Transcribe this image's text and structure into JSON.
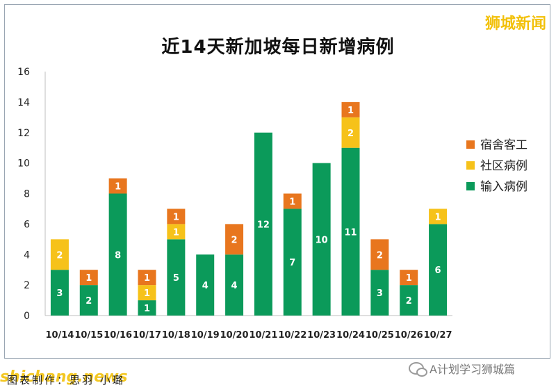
{
  "watermark_top": "狮城新闻",
  "watermark_left": "shichang.news",
  "credit": "图表制作：思羽 小璐",
  "wechat_account": "A计划学习狮城篇",
  "colors": {
    "dorm": "#e8761e",
    "community": "#f6c21a",
    "imported": "#0b9a5a"
  },
  "chart_data": {
    "type": "bar",
    "stacked": true,
    "title": "近14天新加坡每日新增病例",
    "categories": [
      "10/14",
      "10/15",
      "10/16",
      "10/17",
      "10/18",
      "10/19",
      "10/20",
      "10/21",
      "10/22",
      "10/23",
      "10/24",
      "10/25",
      "10/26",
      "10/27"
    ],
    "series": [
      {
        "name": "输入病例",
        "color": "#0b9a5a",
        "values": [
          3,
          2,
          8,
          1,
          5,
          4,
          4,
          12,
          7,
          10,
          11,
          3,
          2,
          6
        ]
      },
      {
        "name": "社区病例",
        "color": "#f6c21a",
        "values": [
          2,
          0,
          0,
          1,
          1,
          0,
          0,
          0,
          0,
          0,
          2,
          0,
          0,
          1
        ]
      },
      {
        "name": "宿舍客工",
        "color": "#e8761e",
        "values": [
          0,
          1,
          1,
          1,
          1,
          0,
          2,
          0,
          1,
          0,
          1,
          2,
          1,
          0
        ]
      }
    ],
    "legend_order": [
      "宿舍客工",
      "社区病例",
      "输入病例"
    ],
    "legend_position": "right",
    "ylim": [
      0,
      16
    ],
    "yticks": [
      0,
      2,
      4,
      6,
      8,
      10,
      12,
      14,
      16
    ],
    "grid": false
  }
}
